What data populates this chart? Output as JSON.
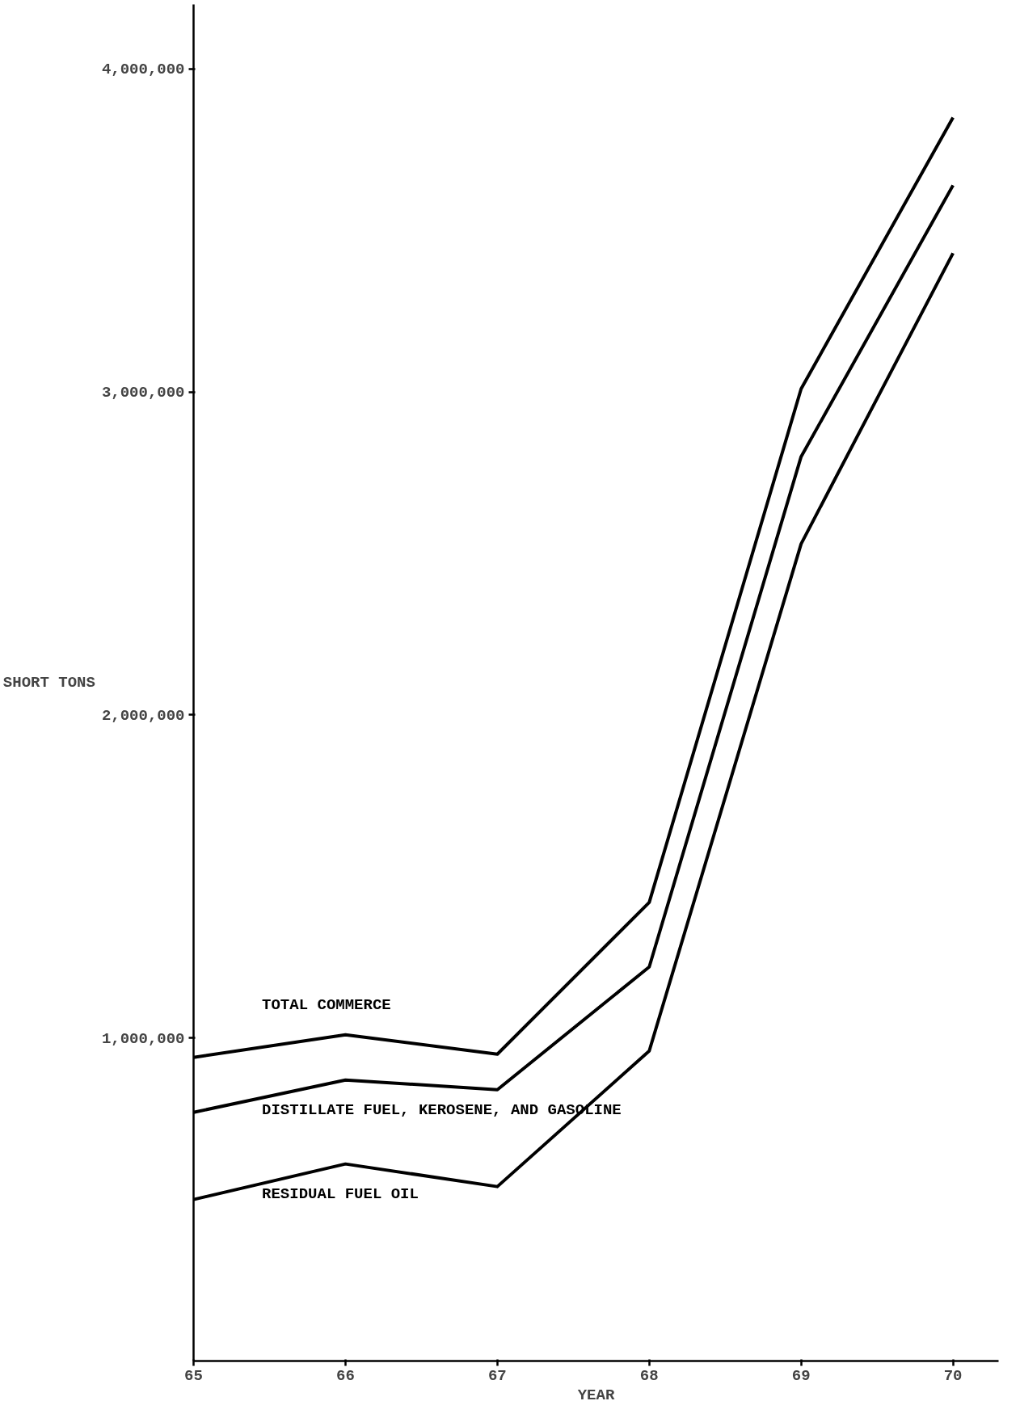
{
  "chart_data": {
    "type": "line",
    "xlabel": "YEAR",
    "ylabel": "SHORT TONS",
    "x": [
      65,
      66,
      67,
      68,
      69,
      70
    ],
    "series": [
      {
        "name": "RESIDUAL FUEL OIL",
        "color": "#000000",
        "values": [
          500000,
          610000,
          540000,
          960000,
          2530000,
          3430000
        ]
      },
      {
        "name": "DISTILLATE FUEL, KEROSENE, AND GASOLINE",
        "color": "#000000",
        "values": [
          770000,
          870000,
          840000,
          1220000,
          2800000,
          3640000
        ]
      },
      {
        "name": "TOTAL COMMERCE",
        "color": "#000000",
        "values": [
          940000,
          1010000,
          950000,
          1420000,
          3010000,
          3850000
        ]
      }
    ],
    "xlim": [
      65,
      70.3
    ],
    "ylim": [
      0,
      4200000
    ],
    "xticks": [
      65,
      66,
      67,
      68,
      69,
      70
    ],
    "yticks": [
      {
        "value": 1000000,
        "label": "1,000,000"
      },
      {
        "value": 2000000,
        "label": "2,000,000"
      },
      {
        "value": 3000000,
        "label": "3,000,000"
      },
      {
        "value": 4000000,
        "label": "4,000,000"
      }
    ],
    "grid": false,
    "marker": "none",
    "line_style": "solid"
  }
}
